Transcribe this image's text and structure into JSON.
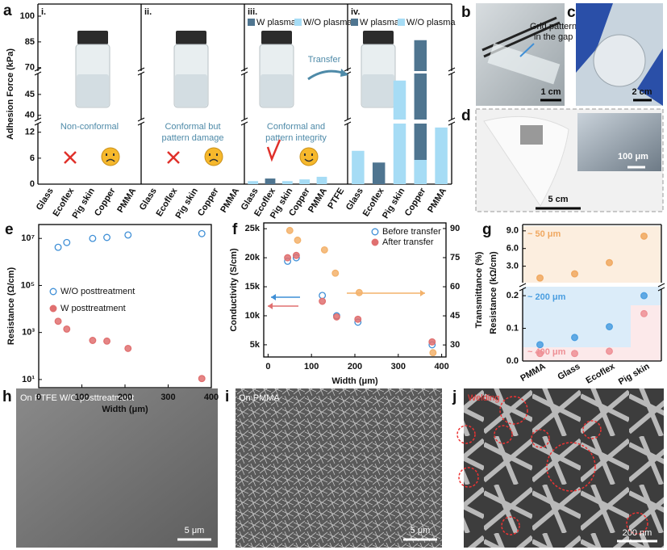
{
  "chart_data": [
    {
      "panel": "a",
      "type": "bar",
      "ylabel": "Adhesion Force (kPa)",
      "y_segments": [
        [
          0,
          14
        ],
        [
          39,
          50
        ],
        [
          68,
          100
        ]
      ],
      "yticks": [
        0,
        6,
        12,
        40,
        45,
        70,
        85,
        100
      ],
      "arrow_label": "Transfer",
      "subpanels": [
        {
          "label": "i.",
          "categories": [
            "Glass",
            "Ecoflex",
            "Pig skin",
            "Copper",
            "PMMA"
          ],
          "annotation": [
            "Non-conformal"
          ]
        },
        {
          "label": "ii.",
          "categories": [
            "Glass",
            "Ecoflex",
            "Pig skin",
            "Copper",
            "PMMA"
          ],
          "annotation": [
            "Conformal but",
            "pattern damage"
          ]
        },
        {
          "label": "iii.",
          "categories": [
            "Glass",
            "Ecoflex",
            "Pig skin",
            "Copper",
            "PMMA",
            "PTFE"
          ],
          "annotation": [
            "Conformal and",
            "pattern integrity"
          ],
          "series": [
            {
              "name": "W plasma",
              "color": "#4f7590",
              "values": [
                null,
                1.3,
                null,
                null,
                null,
                null
              ]
            },
            {
              "name": "W/O plasma",
              "color": "#a6dcf5",
              "values": [
                0.7,
                null,
                0.7,
                1.1,
                1.7,
                null
              ]
            }
          ]
        },
        {
          "label": "iv.",
          "categories": [
            "Glass",
            "Ecoflex",
            "Pig skin",
            "Copper",
            "PMMA"
          ],
          "series": [
            {
              "name": "W plasma",
              "color": "#4f7590",
              "values": [
                null,
                5.0,
                null,
                86,
                null
              ]
            },
            {
              "name": "W/O plasma",
              "color": "#a6dcf5",
              "values": [
                7.7,
                null,
                48.3,
                5.6,
                13.1
              ]
            }
          ]
        }
      ]
    },
    {
      "panel": "e",
      "type": "scatter",
      "xlabel": "Width (μm)",
      "ylabel": "Resistance (Ω/cm)",
      "xlim": [
        0,
        400
      ],
      "xticks": [
        0,
        100,
        200,
        300,
        400
      ],
      "ylim": [
        4.5,
        39000000
      ],
      "log_y": true,
      "yticks": [
        {
          "value": 10,
          "label": "10¹"
        },
        {
          "value": 1000,
          "label": "10³"
        },
        {
          "value": 100000,
          "label": "10⁵"
        },
        {
          "value": 10000000,
          "label": "10⁷"
        }
      ],
      "legend": "center left",
      "series": [
        {
          "name": "W/O posttreatment",
          "color": "#3f8fd6",
          "marker": "hollow",
          "x": [
            45,
            65,
            125,
            158,
            207,
            378
          ],
          "values": [
            4200000,
            6700000,
            10000000,
            11000000,
            14000000,
            16000000
          ]
        },
        {
          "name": "W posttreatment",
          "color": "#e07070",
          "marker": "filled",
          "x": [
            45,
            65,
            125,
            158,
            207,
            378
          ],
          "values": [
            3000,
            1400,
            460,
            430,
            210,
            11
          ]
        }
      ]
    },
    {
      "panel": "f",
      "type": "scatter",
      "xlabel": "Width (μm)",
      "ylabel": "Conductivity (S/cm)",
      "y2label": "Transmittance (%)",
      "xlim": [
        -10,
        410
      ],
      "xticks": [
        0,
        100,
        200,
        300,
        400
      ],
      "ylim": [
        2900,
        26000
      ],
      "yticks": [
        {
          "value": 5000,
          "label": "5k"
        },
        {
          "value": 10000,
          "label": "10k"
        },
        {
          "value": 15000,
          "label": "15k"
        },
        {
          "value": 20000,
          "label": "20k"
        },
        {
          "value": 25000,
          "label": "25k"
        }
      ],
      "y2lim": [
        23.8,
        92.9
      ],
      "y2ticks": [
        30,
        45,
        60,
        75,
        90
      ],
      "legend": "upper right",
      "series": [
        {
          "name": "Before transfer",
          "color": "#3f8fd6",
          "marker": "hollow",
          "x": [
            45,
            65,
            125,
            158,
            207,
            378
          ],
          "values": [
            19400,
            20000,
            13500,
            10000,
            8900,
            5000
          ]
        },
        {
          "name": "After transfer",
          "color": "#e07070",
          "marker": "filled",
          "x": [
            45,
            65,
            125,
            158,
            207,
            378
          ],
          "values": [
            20000,
            20400,
            12500,
            9800,
            9400,
            5500
          ]
        },
        {
          "color": "#f3b26b",
          "marker": "filled",
          "axis": "y2",
          "x": [
            50,
            68,
            130,
            155,
            210,
            380
          ],
          "values": [
            89,
            84,
            79,
            67,
            57,
            26
          ]
        }
      ]
    },
    {
      "panel": "g",
      "type": "scatter",
      "ylabel": "Resistance (kΩ/cm)",
      "categories": [
        "PMMA",
        "Glass",
        "Ecoflex",
        "Pig skin"
      ],
      "y_segments": [
        [
          0,
          0.22
        ],
        [
          0.2,
          9.8
        ]
      ],
      "yticks": [
        {
          "value": 0,
          "label": "0.0"
        },
        0.1,
        0.2,
        {
          "value": 3,
          "label": "3.0"
        },
        {
          "value": 6,
          "label": "6.0"
        },
        {
          "value": 9,
          "label": "9.0"
        }
      ],
      "series": [
        {
          "name": "~ 50 μm",
          "color": "#f0a860",
          "marker": "filled",
          "values": [
            1.0,
            1.7,
            3.6,
            8.1
          ]
        },
        {
          "name": "~ 200 μm",
          "color": "#4a9ee0",
          "marker": "filled",
          "values": [
            0.05,
            0.072,
            0.105,
            0.2
          ]
        },
        {
          "name": "~ 400 μm",
          "color": "#ee8f95",
          "marker": "filled",
          "values": [
            0.023,
            0.023,
            0.03,
            0.145
          ]
        }
      ]
    }
  ],
  "photos": [
    {
      "panel": "b",
      "annotation": [
        "Grid pattern",
        "in the gap"
      ],
      "scale_bar": "1 cm"
    },
    {
      "panel": "c",
      "scale_bar": "2 cm"
    },
    {
      "panel": "d",
      "scale_bar": "5 cm",
      "inset_scale_bar": "100 μm"
    },
    {
      "panel": "h",
      "caption": "On PTFE W/O posttreatment",
      "scale_bar": "5 μm"
    },
    {
      "panel": "i",
      "caption": "On PMMA",
      "scale_bar": "5 μm"
    },
    {
      "panel": "j",
      "caption": "Welding",
      "scale_bar": "200 nm"
    }
  ]
}
